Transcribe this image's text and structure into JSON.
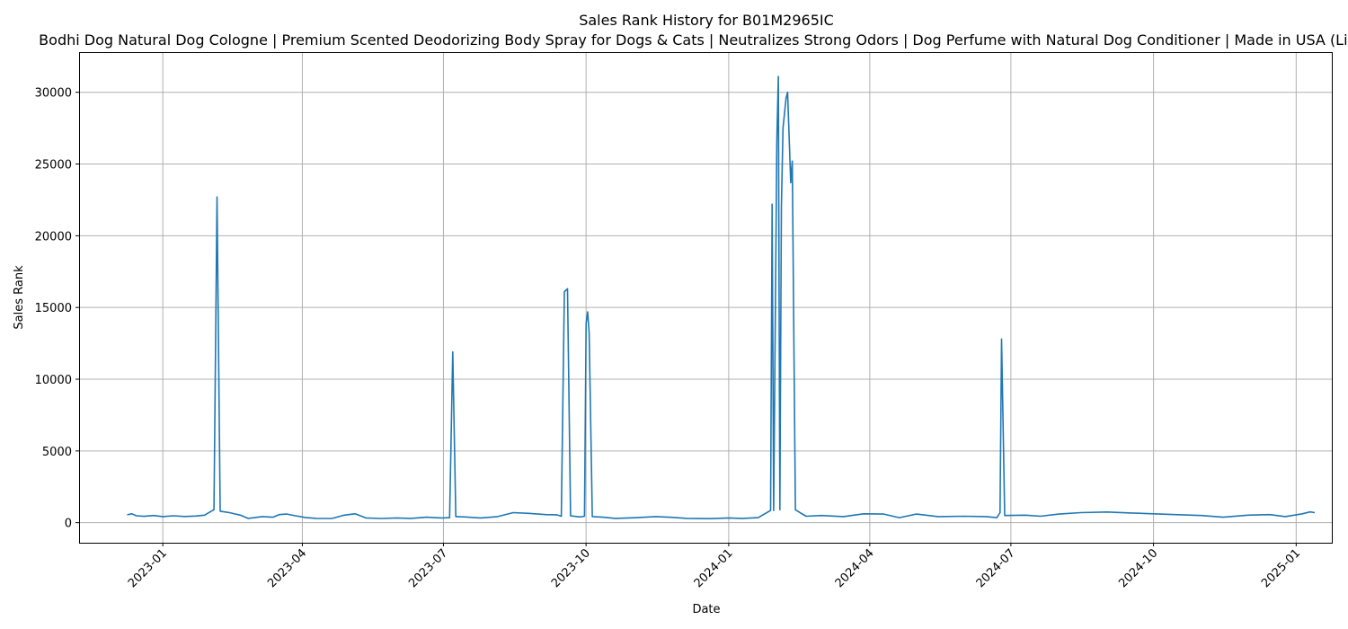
{
  "chart_data": {
    "type": "line",
    "title": "Sales Rank History for B01M2965IC",
    "subtitle": "Bodhi Dog Natural Dog Cologne | Premium Scented Deodorizing Body Spray for Dogs & Cats | Neutralizes Strong Odors | Dog Perfume with Natural Dog Conditioner | Made in USA (Lilac)",
    "xlabel": "Date",
    "ylabel": "Sales Rank",
    "x_scale": "date",
    "xlim": [
      "2022-11-08",
      "2025-01-24"
    ],
    "ylim": [
      -1400,
      32800
    ],
    "x_ticks": [
      "2023-01",
      "2023-04",
      "2023-07",
      "2023-10",
      "2024-01",
      "2024-04",
      "2024-07",
      "2024-10",
      "2025-01"
    ],
    "y_ticks": [
      0,
      5000,
      10000,
      15000,
      20000,
      25000,
      30000
    ],
    "grid": true,
    "line_color": "#1f77b4",
    "series": [
      {
        "points": [
          [
            "2022-12-09",
            550
          ],
          [
            "2022-12-12",
            620
          ],
          [
            "2022-12-15",
            480
          ],
          [
            "2022-12-20",
            440
          ],
          [
            "2022-12-26",
            500
          ],
          [
            "2023-01-01",
            420
          ],
          [
            "2023-01-08",
            480
          ],
          [
            "2023-01-15",
            430
          ],
          [
            "2023-01-22",
            460
          ],
          [
            "2023-01-28",
            520
          ],
          [
            "2023-02-01",
            780
          ],
          [
            "2023-02-03",
            900
          ],
          [
            "2023-02-05",
            22700
          ],
          [
            "2023-02-07",
            800
          ],
          [
            "2023-02-13",
            700
          ],
          [
            "2023-02-20",
            520
          ],
          [
            "2023-02-25",
            300
          ],
          [
            "2023-03-01",
            350
          ],
          [
            "2023-03-06",
            420
          ],
          [
            "2023-03-13",
            380
          ],
          [
            "2023-03-17",
            560
          ],
          [
            "2023-03-22",
            600
          ],
          [
            "2023-03-28",
            470
          ],
          [
            "2023-04-03",
            360
          ],
          [
            "2023-04-10",
            300
          ],
          [
            "2023-04-20",
            290
          ],
          [
            "2023-04-28",
            520
          ],
          [
            "2023-05-05",
            620
          ],
          [
            "2023-05-12",
            330
          ],
          [
            "2023-05-22",
            290
          ],
          [
            "2023-06-01",
            330
          ],
          [
            "2023-06-10",
            300
          ],
          [
            "2023-06-20",
            380
          ],
          [
            "2023-06-30",
            330
          ],
          [
            "2023-07-05",
            350
          ],
          [
            "2023-07-07",
            11900
          ],
          [
            "2023-07-09",
            420
          ],
          [
            "2023-07-15",
            400
          ],
          [
            "2023-07-25",
            330
          ],
          [
            "2023-08-05",
            420
          ],
          [
            "2023-08-15",
            700
          ],
          [
            "2023-08-25",
            650
          ],
          [
            "2023-09-05",
            560
          ],
          [
            "2023-09-12",
            550
          ],
          [
            "2023-09-15",
            450
          ],
          [
            "2023-09-17",
            16100
          ],
          [
            "2023-09-19",
            16300
          ],
          [
            "2023-09-21",
            480
          ],
          [
            "2023-09-27",
            400
          ],
          [
            "2023-09-30",
            450
          ],
          [
            "2023-10-01",
            13900
          ],
          [
            "2023-10-02",
            14700
          ],
          [
            "2023-10-03",
            13200
          ],
          [
            "2023-10-05",
            420
          ],
          [
            "2023-10-12",
            380
          ],
          [
            "2023-10-20",
            300
          ],
          [
            "2023-11-01",
            340
          ],
          [
            "2023-11-15",
            420
          ],
          [
            "2023-11-25",
            370
          ],
          [
            "2023-12-05",
            300
          ],
          [
            "2023-12-20",
            280
          ],
          [
            "2024-01-01",
            330
          ],
          [
            "2024-01-10",
            300
          ],
          [
            "2024-01-20",
            350
          ],
          [
            "2024-01-28",
            850
          ],
          [
            "2024-01-29",
            22200
          ],
          [
            "2024-01-30",
            850
          ],
          [
            "2024-02-01",
            26500
          ],
          [
            "2024-02-02",
            31100
          ],
          [
            "2024-02-03",
            900
          ],
          [
            "2024-02-04",
            22000
          ],
          [
            "2024-02-05",
            27500
          ],
          [
            "2024-02-07",
            29600
          ],
          [
            "2024-02-08",
            30000
          ],
          [
            "2024-02-10",
            23700
          ],
          [
            "2024-02-11",
            25200
          ],
          [
            "2024-02-13",
            900
          ],
          [
            "2024-02-16",
            700
          ],
          [
            "2024-02-20",
            450
          ],
          [
            "2024-03-01",
            500
          ],
          [
            "2024-03-15",
            420
          ],
          [
            "2024-03-28",
            620
          ],
          [
            "2024-04-10",
            600
          ],
          [
            "2024-04-20",
            350
          ],
          [
            "2024-05-01",
            600
          ],
          [
            "2024-05-15",
            420
          ],
          [
            "2024-06-01",
            450
          ],
          [
            "2024-06-15",
            420
          ],
          [
            "2024-06-22",
            350
          ],
          [
            "2024-06-24",
            700
          ],
          [
            "2024-06-25",
            12800
          ],
          [
            "2024-06-27",
            500
          ],
          [
            "2024-07-10",
            520
          ],
          [
            "2024-07-20",
            450
          ],
          [
            "2024-08-01",
            600
          ],
          [
            "2024-08-15",
            700
          ],
          [
            "2024-09-01",
            740
          ],
          [
            "2024-09-15",
            680
          ],
          [
            "2024-10-01",
            620
          ],
          [
            "2024-10-15",
            560
          ],
          [
            "2024-11-01",
            500
          ],
          [
            "2024-11-15",
            380
          ],
          [
            "2024-12-01",
            520
          ],
          [
            "2024-12-15",
            560
          ],
          [
            "2024-12-25",
            420
          ],
          [
            "2025-01-05",
            620
          ],
          [
            "2025-01-10",
            750
          ],
          [
            "2025-01-13",
            700
          ]
        ]
      }
    ]
  }
}
